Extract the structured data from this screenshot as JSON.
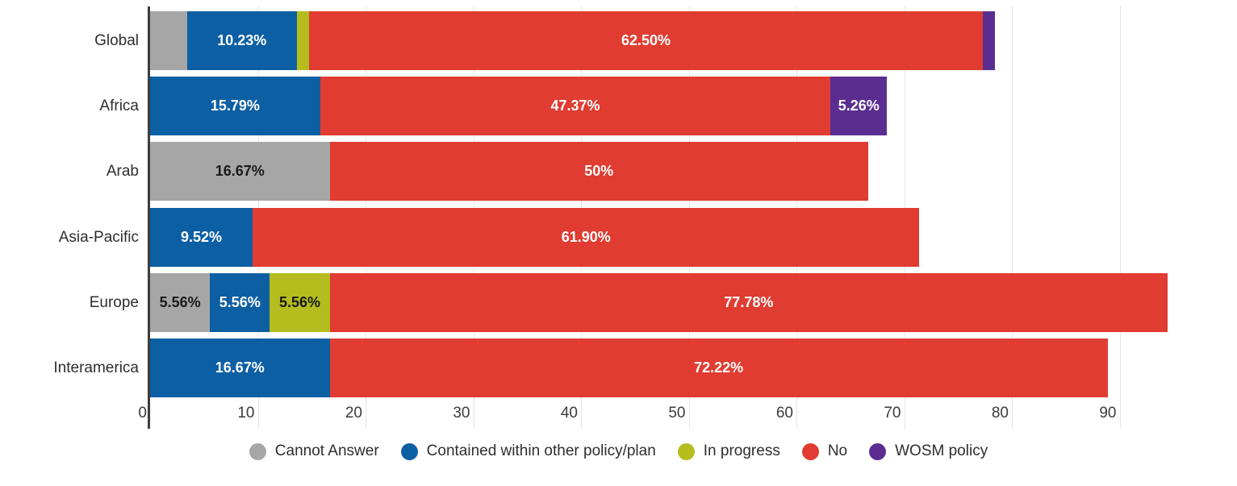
{
  "colors": {
    "background": "#ffffff",
    "gridline": "#e6e6e6",
    "axis_line": "#3d3d3d",
    "text": "#2e2e2e",
    "tick_text": "#3b3b3b"
  },
  "chart_data": {
    "type": "bar",
    "orientation": "horizontal",
    "stacked": true,
    "title": "",
    "xlabel": "",
    "ylabel": "",
    "categories": [
      "Global",
      "Africa",
      "Arab",
      "Asia-Pacific",
      "Europe",
      "Interamerica"
    ],
    "series": [
      {
        "name": "Cannot Answer",
        "color": "#a6a6a6",
        "label_color": "#1a1a1a",
        "values": [
          3.41,
          0,
          16.67,
          0,
          5.56,
          0
        ],
        "labels": [
          "",
          "",
          "16.67%",
          "",
          "5.56%",
          ""
        ]
      },
      {
        "name": "Contained within other policy/plan",
        "color": "#0d5fa4",
        "label_color": "#ffffff",
        "values": [
          10.23,
          15.79,
          0,
          9.52,
          5.56,
          16.67
        ],
        "labels": [
          "10.23%",
          "15.79%",
          "",
          "9.52%",
          "5.56%",
          "16.67%"
        ]
      },
      {
        "name": "In progress",
        "color": "#b4bd1d",
        "label_color": "#1a1a1a",
        "values": [
          1.14,
          0,
          0,
          0,
          5.56,
          0
        ],
        "labels": [
          "",
          "",
          "",
          "",
          "5.56%",
          ""
        ]
      },
      {
        "name": "No",
        "color": "#e03c31",
        "label_color": "#ffffff",
        "values": [
          62.5,
          47.37,
          50,
          61.9,
          77.78,
          72.22
        ],
        "labels": [
          "62.50%",
          "47.37%",
          "50%",
          "61.90%",
          "77.78%",
          "72.22%"
        ]
      },
      {
        "name": "WOSM policy",
        "color": "#5b2d90",
        "label_color": "#ffffff",
        "values": [
          1.14,
          5.26,
          0,
          0,
          0,
          0
        ],
        "labels": [
          "",
          "5.26%",
          "",
          "",
          "",
          ""
        ]
      }
    ],
    "x_axis": {
      "ticks": [
        0,
        10,
        20,
        30,
        40,
        50,
        60,
        70,
        80,
        90
      ],
      "min": 0,
      "max": 100,
      "grid": true
    },
    "legend": {
      "position": "bottom",
      "items": [
        "Cannot Answer",
        "Contained within other policy/plan",
        "In progress",
        "No",
        "WOSM policy"
      ]
    }
  }
}
